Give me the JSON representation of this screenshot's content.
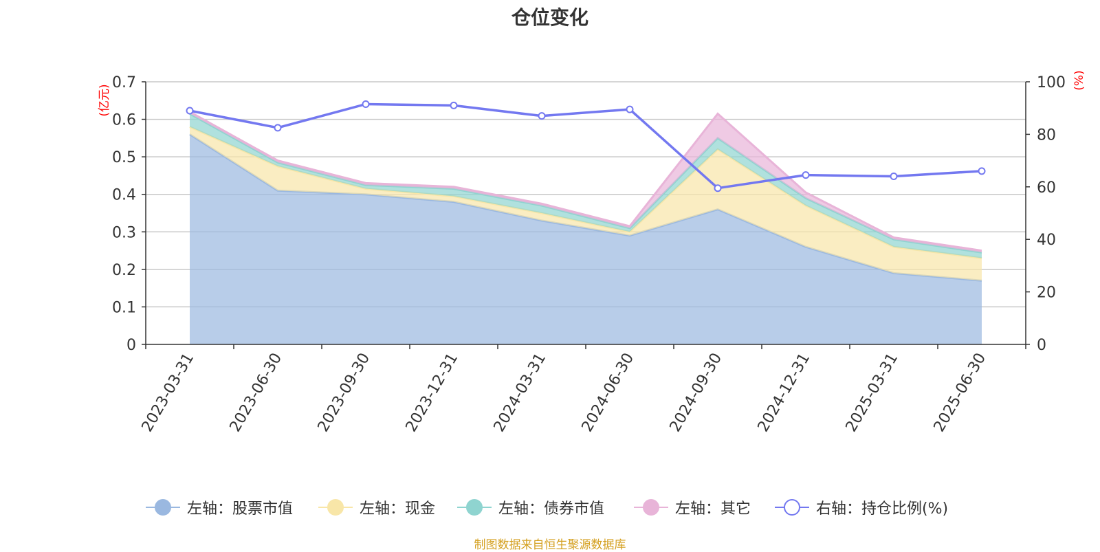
{
  "chart_data": {
    "type": "area",
    "title": "仓位变化",
    "categories": [
      "2023-03-31",
      "2023-06-30",
      "2023-09-30",
      "2023-12-31",
      "2024-03-31",
      "2024-06-30",
      "2024-09-30",
      "2024-12-31",
      "2025-03-31",
      "2025-06-30"
    ],
    "left_axis": {
      "unit": "(亿元)",
      "ylim": [
        0,
        0.7
      ],
      "ticks": [
        "0",
        "0.1",
        "0.2",
        "0.3",
        "0.4",
        "0.5",
        "0.6",
        "0.7"
      ],
      "color": "#ff0000"
    },
    "right_axis": {
      "unit": "(%)",
      "ylim": [
        0,
        100
      ],
      "ticks": [
        "0",
        "20",
        "40",
        "60",
        "80",
        "100"
      ],
      "color": "#ff0000"
    },
    "stacked_series": [
      {
        "name": "左轴：股票市值",
        "color": "#9ab8e0",
        "values": [
          0.56,
          0.41,
          0.4,
          0.38,
          0.33,
          0.29,
          0.36,
          0.26,
          0.19,
          0.17
        ]
      },
      {
        "name": "左轴：现金",
        "color": "#f8e6a8",
        "values": [
          0.02,
          0.065,
          0.015,
          0.015,
          0.02,
          0.01,
          0.16,
          0.11,
          0.07,
          0.06
        ]
      },
      {
        "name": "左轴：债券市值",
        "color": "#8fd4d0",
        "values": [
          0.035,
          0.01,
          0.01,
          0.02,
          0.02,
          0.01,
          0.03,
          0.02,
          0.02,
          0.015
        ]
      },
      {
        "name": "左轴：其它",
        "color": "#e8b4d8",
        "values": [
          0.005,
          0.005,
          0.005,
          0.005,
          0.005,
          0.005,
          0.065,
          0.015,
          0.005,
          0.005
        ]
      }
    ],
    "line_series": {
      "name": "右轴：持仓比例(%)",
      "color": "#7378f0",
      "values": [
        89,
        82.5,
        91.5,
        91,
        87,
        89.5,
        59.5,
        64.5,
        64,
        66
      ]
    },
    "grid": true,
    "legend_position": "bottom"
  },
  "source_note": "制图数据来自恒生聚源数据库"
}
